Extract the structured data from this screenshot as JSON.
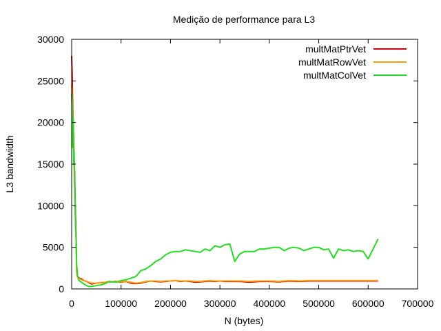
{
  "chart_data": {
    "type": "line",
    "title": "Medição de performance para L3",
    "xlabel": "N (bytes)",
    "ylabel": "L3 bandwidth",
    "xlim": [
      0,
      700000
    ],
    "ylim": [
      0,
      30000
    ],
    "x_ticks": [
      0,
      100000,
      200000,
      300000,
      400000,
      500000,
      600000,
      700000
    ],
    "y_ticks": [
      0,
      5000,
      10000,
      15000,
      20000,
      25000,
      30000
    ],
    "x_tick_labels": [
      "0",
      "100000",
      "200000",
      "300000",
      "400000",
      "500000",
      "600000",
      "700000"
    ],
    "y_tick_labels": [
      "0",
      "5000",
      "10000",
      "15000",
      "20000",
      "25000",
      "30000"
    ],
    "grid": false,
    "legend_position": "top-right",
    "series": [
      {
        "name": "multMatPtrVet",
        "color": "#cc0000",
        "points": [
          [
            0,
            28000
          ],
          [
            1000,
            26000
          ],
          [
            2000,
            22500
          ],
          [
            3000,
            20000
          ],
          [
            4000,
            18000
          ],
          [
            5000,
            15500
          ],
          [
            6000,
            14000
          ],
          [
            7000,
            11000
          ],
          [
            8000,
            8500
          ],
          [
            9000,
            6000
          ],
          [
            10000,
            2500
          ],
          [
            12000,
            1500
          ],
          [
            15000,
            1300
          ],
          [
            20000,
            1200
          ],
          [
            25000,
            1000
          ],
          [
            30000,
            900
          ],
          [
            40000,
            600
          ],
          [
            50000,
            700
          ],
          [
            60000,
            750
          ],
          [
            70000,
            800
          ],
          [
            80000,
            850
          ],
          [
            90000,
            900
          ],
          [
            100000,
            800
          ],
          [
            110000,
            900
          ],
          [
            120000,
            700
          ],
          [
            130000,
            650
          ],
          [
            140000,
            700
          ],
          [
            150000,
            850
          ],
          [
            160000,
            950
          ],
          [
            170000,
            900
          ],
          [
            180000,
            850
          ],
          [
            190000,
            900
          ],
          [
            200000,
            950
          ],
          [
            210000,
            1000
          ],
          [
            220000,
            900
          ],
          [
            230000,
            950
          ],
          [
            240000,
            900
          ],
          [
            250000,
            800
          ],
          [
            260000,
            850
          ],
          [
            270000,
            900
          ],
          [
            280000,
            950
          ],
          [
            290000,
            900
          ],
          [
            300000,
            950
          ],
          [
            310000,
            900
          ],
          [
            320000,
            900
          ],
          [
            340000,
            900
          ],
          [
            360000,
            800
          ],
          [
            380000,
            900
          ],
          [
            400000,
            900
          ],
          [
            420000,
            850
          ],
          [
            440000,
            950
          ],
          [
            460000,
            900
          ],
          [
            480000,
            950
          ],
          [
            500000,
            950
          ],
          [
            520000,
            950
          ],
          [
            540000,
            950
          ],
          [
            560000,
            950
          ],
          [
            580000,
            950
          ],
          [
            600000,
            950
          ],
          [
            620000,
            950
          ]
        ]
      },
      {
        "name": "multMatRowVet",
        "color": "#ff9900",
        "points": [
          [
            0,
            24500
          ],
          [
            1000,
            23000
          ],
          [
            2000,
            21500
          ],
          [
            3000,
            19500
          ],
          [
            4000,
            17000
          ],
          [
            5000,
            14500
          ],
          [
            6000,
            12500
          ],
          [
            7000,
            10000
          ],
          [
            8000,
            7500
          ],
          [
            9000,
            5500
          ],
          [
            10000,
            2000
          ],
          [
            12000,
            1400
          ],
          [
            15000,
            1250
          ],
          [
            20000,
            1100
          ],
          [
            25000,
            1000
          ],
          [
            30000,
            900
          ],
          [
            40000,
            700
          ],
          [
            50000,
            700
          ],
          [
            60000,
            750
          ],
          [
            70000,
            800
          ],
          [
            80000,
            850
          ],
          [
            90000,
            900
          ],
          [
            100000,
            850
          ],
          [
            110000,
            900
          ],
          [
            120000,
            800
          ],
          [
            130000,
            700
          ],
          [
            140000,
            750
          ],
          [
            150000,
            900
          ],
          [
            160000,
            950
          ],
          [
            170000,
            950
          ],
          [
            180000,
            900
          ],
          [
            190000,
            950
          ],
          [
            200000,
            950
          ],
          [
            210000,
            1000
          ],
          [
            220000,
            950
          ],
          [
            230000,
            950
          ],
          [
            240000,
            950
          ],
          [
            250000,
            900
          ],
          [
            260000,
            900
          ],
          [
            270000,
            950
          ],
          [
            280000,
            1000
          ],
          [
            290000,
            950
          ],
          [
            300000,
            950
          ],
          [
            310000,
            950
          ],
          [
            320000,
            950
          ],
          [
            340000,
            950
          ],
          [
            360000,
            900
          ],
          [
            380000,
            950
          ],
          [
            400000,
            950
          ],
          [
            420000,
            900
          ],
          [
            440000,
            1000
          ],
          [
            460000,
            950
          ],
          [
            480000,
            1000
          ],
          [
            500000,
            1000
          ],
          [
            520000,
            1000
          ],
          [
            540000,
            1000
          ],
          [
            560000,
            1000
          ],
          [
            580000,
            1000
          ],
          [
            600000,
            1000
          ],
          [
            620000,
            1000
          ]
        ]
      },
      {
        "name": "multMatColVet",
        "color": "#22dd22",
        "points": [
          [
            0,
            23500
          ],
          [
            1000,
            21500
          ],
          [
            2000,
            17000
          ],
          [
            3000,
            20500
          ],
          [
            4000,
            15000
          ],
          [
            5000,
            16500
          ],
          [
            6000,
            13000
          ],
          [
            7000,
            10000
          ],
          [
            8000,
            7500
          ],
          [
            9000,
            6000
          ],
          [
            10000,
            3000
          ],
          [
            12000,
            1500
          ],
          [
            15000,
            1000
          ],
          [
            20000,
            800
          ],
          [
            25000,
            600
          ],
          [
            30000,
            400
          ],
          [
            35000,
            300
          ],
          [
            40000,
            300
          ],
          [
            45000,
            350
          ],
          [
            50000,
            400
          ],
          [
            60000,
            500
          ],
          [
            70000,
            700
          ],
          [
            75000,
            900
          ],
          [
            80000,
            850
          ],
          [
            90000,
            800
          ],
          [
            100000,
            1000
          ],
          [
            110000,
            1100
          ],
          [
            120000,
            1300
          ],
          [
            130000,
            1500
          ],
          [
            140000,
            2200
          ],
          [
            150000,
            2400
          ],
          [
            160000,
            2800
          ],
          [
            170000,
            3300
          ],
          [
            180000,
            3600
          ],
          [
            190000,
            4100
          ],
          [
            200000,
            4400
          ],
          [
            210000,
            4500
          ],
          [
            220000,
            4500
          ],
          [
            230000,
            4700
          ],
          [
            240000,
            4600
          ],
          [
            250000,
            4500
          ],
          [
            260000,
            4400
          ],
          [
            270000,
            4800
          ],
          [
            280000,
            4600
          ],
          [
            290000,
            5200
          ],
          [
            300000,
            5000
          ],
          [
            310000,
            5300
          ],
          [
            320000,
            5400
          ],
          [
            330000,
            3300
          ],
          [
            340000,
            4200
          ],
          [
            350000,
            4500
          ],
          [
            360000,
            4500
          ],
          [
            370000,
            4500
          ],
          [
            380000,
            4800
          ],
          [
            390000,
            4800
          ],
          [
            400000,
            4900
          ],
          [
            410000,
            5000
          ],
          [
            420000,
            5000
          ],
          [
            430000,
            4600
          ],
          [
            440000,
            4900
          ],
          [
            450000,
            5000
          ],
          [
            460000,
            4900
          ],
          [
            470000,
            4600
          ],
          [
            480000,
            4800
          ],
          [
            490000,
            5000
          ],
          [
            500000,
            5000
          ],
          [
            510000,
            4700
          ],
          [
            520000,
            4800
          ],
          [
            530000,
            3700
          ],
          [
            540000,
            4800
          ],
          [
            550000,
            4600
          ],
          [
            560000,
            4700
          ],
          [
            570000,
            4500
          ],
          [
            580000,
            4600
          ],
          [
            590000,
            4500
          ],
          [
            600000,
            3600
          ],
          [
            610000,
            4800
          ],
          [
            620000,
            6000
          ]
        ]
      }
    ]
  }
}
